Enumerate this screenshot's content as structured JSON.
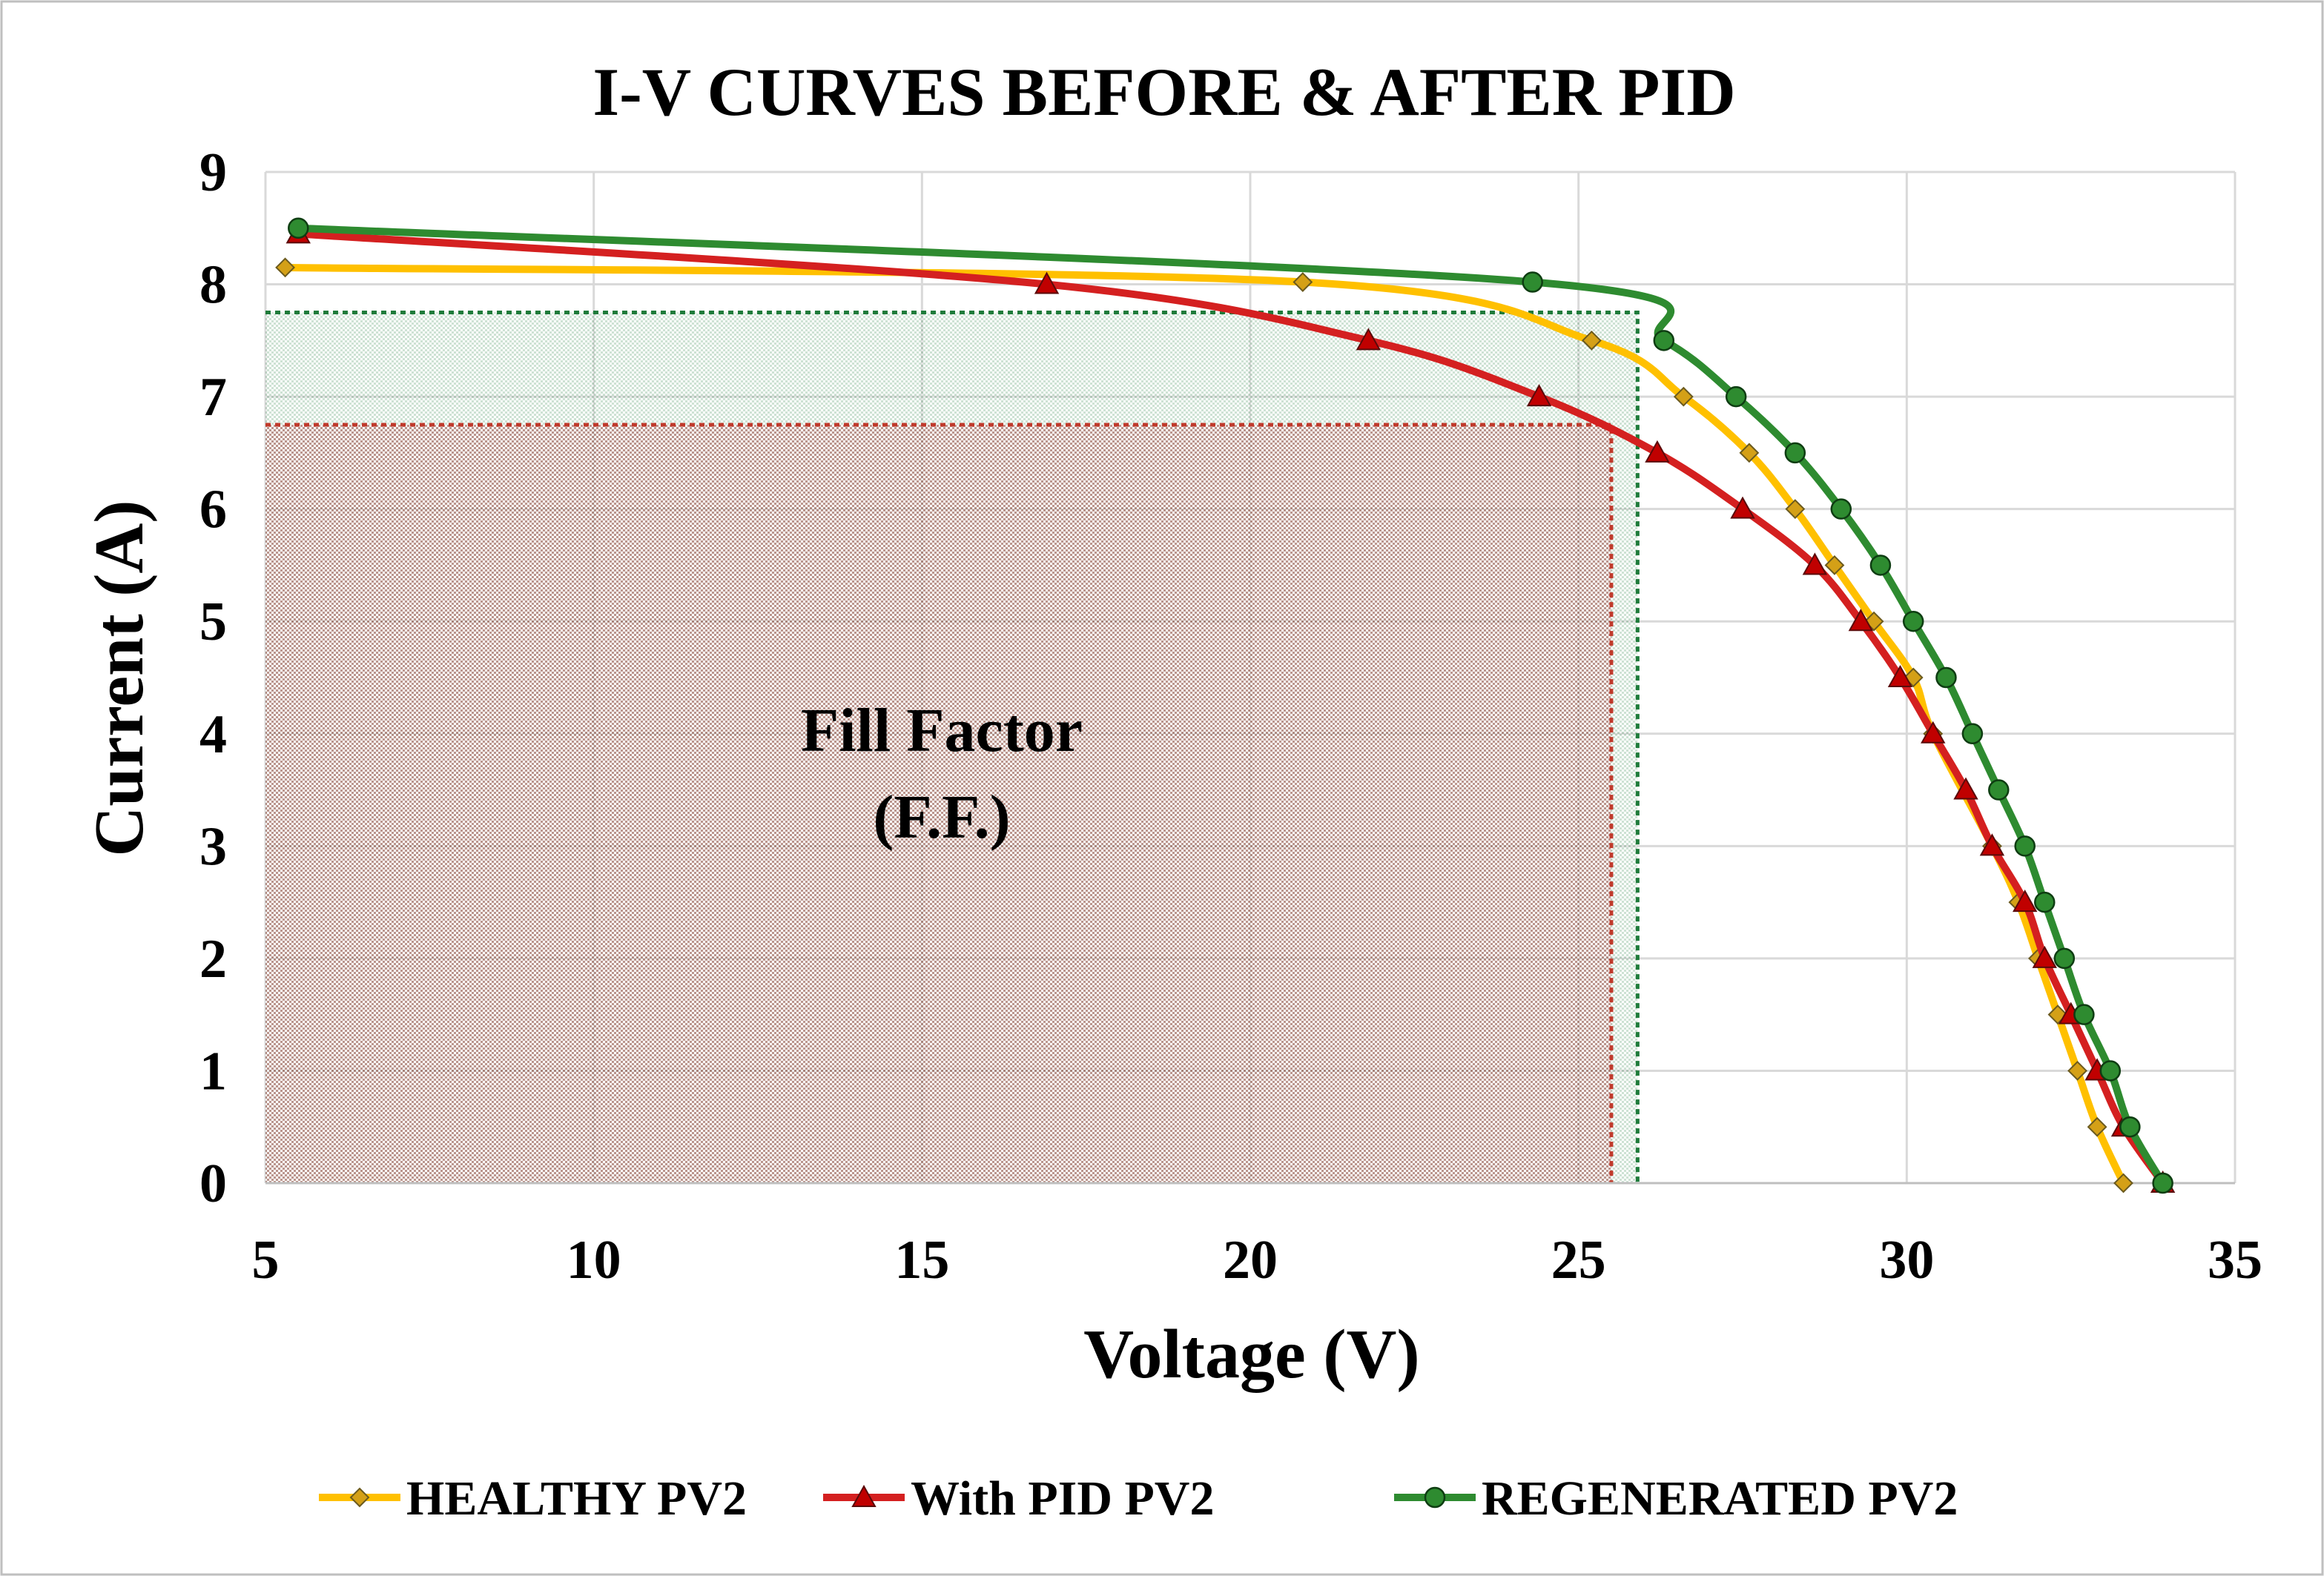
{
  "chart_data": {
    "type": "line",
    "title": "I-V CURVES BEFORE & AFTER PID",
    "xlabel": "Voltage (V)",
    "ylabel": "Current (A)",
    "xlim": [
      5,
      35
    ],
    "ylim": [
      0,
      9
    ],
    "xticks": [
      5,
      10,
      15,
      20,
      25,
      30,
      35
    ],
    "yticks": [
      0,
      1,
      2,
      3,
      4,
      5,
      6,
      7,
      8,
      9
    ],
    "grid": true,
    "legend_position": "bottom",
    "annotation": {
      "line1": "Fill Factor",
      "line2": "(F.F.)"
    },
    "fill_regions": [
      {
        "name": "regenerated-mpp-rect",
        "vmp": 25.9,
        "imp": 7.75,
        "color": "#1e7b3a"
      },
      {
        "name": "pid-mpp-rect",
        "vmp": 25.5,
        "imp": 6.75,
        "color": "#9b1b1b"
      }
    ],
    "series": [
      {
        "name": "HEALTHY PV2",
        "color": "#FFC000",
        "marker": "diamond",
        "marker_color": "#D4A017",
        "points": [
          [
            5.3,
            8.15
          ],
          [
            20.8,
            8.02
          ],
          [
            25.2,
            7.5
          ],
          [
            26.6,
            7.0
          ],
          [
            27.6,
            6.5
          ],
          [
            28.3,
            6.0
          ],
          [
            28.9,
            5.5
          ],
          [
            29.5,
            5.0
          ],
          [
            30.1,
            4.5
          ],
          [
            30.4,
            4.0
          ],
          [
            31.3,
            3.0
          ],
          [
            31.7,
            2.5
          ],
          [
            32.0,
            2.0
          ],
          [
            32.3,
            1.5
          ],
          [
            32.6,
            1.0
          ],
          [
            32.9,
            0.5
          ],
          [
            33.3,
            0.0
          ]
        ]
      },
      {
        "name": "With PID PV2",
        "color": "#D42020",
        "marker": "triangle",
        "marker_color": "#C00000",
        "points": [
          [
            5.5,
            8.45
          ],
          [
            16.9,
            8.0
          ],
          [
            21.8,
            7.5
          ],
          [
            24.4,
            7.0
          ],
          [
            26.2,
            6.5
          ],
          [
            27.5,
            6.0
          ],
          [
            28.6,
            5.5
          ],
          [
            29.3,
            5.0
          ],
          [
            29.9,
            4.5
          ],
          [
            30.4,
            4.0
          ],
          [
            30.9,
            3.5
          ],
          [
            31.3,
            3.0
          ],
          [
            31.8,
            2.5
          ],
          [
            32.1,
            2.0
          ],
          [
            32.5,
            1.5
          ],
          [
            32.9,
            1.0
          ],
          [
            33.3,
            0.5
          ],
          [
            33.9,
            0.0
          ]
        ]
      },
      {
        "name": "REGENERATED PV2",
        "color": "#2E8B30",
        "marker": "circle",
        "marker_color": "#2E8B30",
        "points": [
          [
            5.5,
            8.5
          ],
          [
            24.3,
            8.02
          ],
          [
            26.3,
            7.5
          ],
          [
            27.4,
            7.0
          ],
          [
            28.3,
            6.5
          ],
          [
            29.0,
            6.0
          ],
          [
            29.6,
            5.5
          ],
          [
            30.1,
            5.0
          ],
          [
            30.6,
            4.5
          ],
          [
            31.0,
            4.0
          ],
          [
            31.4,
            3.5
          ],
          [
            31.8,
            3.0
          ],
          [
            32.1,
            2.5
          ],
          [
            32.4,
            2.0
          ],
          [
            32.7,
            1.5
          ],
          [
            33.1,
            1.0
          ],
          [
            33.4,
            0.5
          ],
          [
            33.9,
            0.0
          ]
        ]
      }
    ]
  }
}
